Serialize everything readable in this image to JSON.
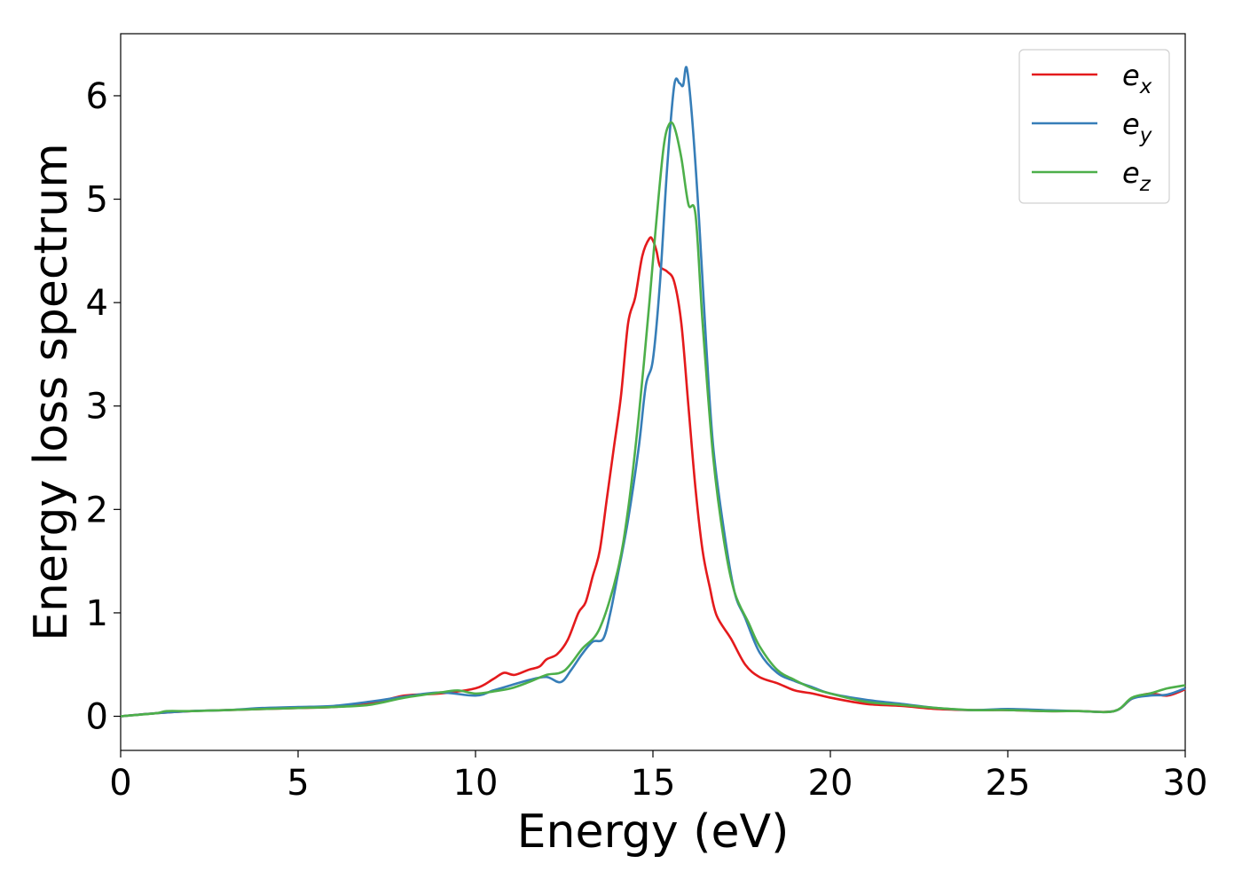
{
  "chart_data": {
    "type": "line",
    "title": "",
    "xlabel": "Energy (eV)",
    "ylabel": "Energy loss spectrum",
    "xlim": [
      0,
      30
    ],
    "ylim": [
      -0.33,
      6.6
    ],
    "xticks": [
      0,
      5,
      10,
      15,
      20,
      25,
      30
    ],
    "yticks": [
      0,
      1,
      2,
      3,
      4,
      5,
      6
    ],
    "grid": false,
    "legend_position": "top-right",
    "series": [
      {
        "name": "e_x",
        "label_base": "e",
        "label_sub": "x",
        "color": "#e41a1c",
        "x": [
          0,
          1,
          2,
          3,
          4,
          5,
          6,
          7,
          8,
          9,
          10,
          10.5,
          10.8,
          11.1,
          11.5,
          11.8,
          12.0,
          12.3,
          12.6,
          12.9,
          13.1,
          13.3,
          13.5,
          13.7,
          13.9,
          14.1,
          14.3,
          14.5,
          14.7,
          14.9,
          15.0,
          15.1,
          15.2,
          15.4,
          15.6,
          15.8,
          16.0,
          16.2,
          16.4,
          16.6,
          16.8,
          17.2,
          17.6,
          18.0,
          18.5,
          19.0,
          19.5,
          20.0,
          21.0,
          22.0,
          23.0,
          24.0,
          25.0,
          26.0,
          27.0,
          28.0,
          28.5,
          29.0,
          29.5,
          30.0
        ],
        "y": [
          0,
          0.03,
          0.05,
          0.06,
          0.07,
          0.08,
          0.09,
          0.12,
          0.2,
          0.22,
          0.27,
          0.36,
          0.42,
          0.4,
          0.45,
          0.48,
          0.55,
          0.6,
          0.74,
          1.0,
          1.1,
          1.35,
          1.6,
          2.1,
          2.6,
          3.1,
          3.8,
          4.05,
          4.45,
          4.62,
          4.6,
          4.5,
          4.35,
          4.3,
          4.2,
          3.8,
          3.0,
          2.2,
          1.6,
          1.25,
          0.97,
          0.75,
          0.5,
          0.38,
          0.32,
          0.25,
          0.22,
          0.18,
          0.12,
          0.1,
          0.07,
          0.06,
          0.06,
          0.05,
          0.05,
          0.05,
          0.17,
          0.22,
          0.2,
          0.26
        ]
      },
      {
        "name": "e_y",
        "label_base": "e",
        "label_sub": "y",
        "color": "#377eb8",
        "x": [
          0,
          1,
          2,
          3,
          4,
          5,
          6,
          7,
          8,
          9,
          10,
          10.5,
          11,
          11.5,
          12.0,
          12.4,
          12.7,
          13.0,
          13.3,
          13.6,
          13.8,
          14.0,
          14.3,
          14.6,
          14.8,
          15.0,
          15.2,
          15.4,
          15.6,
          15.75,
          15.85,
          15.95,
          16.1,
          16.3,
          16.5,
          16.7,
          17.0,
          17.3,
          17.6,
          18.0,
          18.5,
          19.0,
          19.5,
          20.0,
          21.0,
          22.0,
          23.0,
          24.0,
          25.0,
          26.0,
          27.0,
          28.0,
          28.5,
          29.0,
          29.5,
          30.0
        ],
        "y": [
          0,
          0.03,
          0.05,
          0.06,
          0.08,
          0.09,
          0.1,
          0.14,
          0.19,
          0.23,
          0.2,
          0.25,
          0.3,
          0.35,
          0.38,
          0.33,
          0.45,
          0.6,
          0.72,
          0.75,
          1.0,
          1.35,
          1.9,
          2.6,
          3.2,
          3.45,
          4.2,
          5.3,
          6.1,
          6.12,
          6.1,
          6.27,
          5.8,
          4.8,
          3.6,
          2.6,
          1.8,
          1.2,
          0.95,
          0.62,
          0.42,
          0.34,
          0.28,
          0.22,
          0.16,
          0.12,
          0.08,
          0.06,
          0.07,
          0.06,
          0.05,
          0.05,
          0.17,
          0.2,
          0.21,
          0.27
        ]
      },
      {
        "name": "e_z",
        "label_base": "e",
        "label_sub": "z",
        "color": "#4daf4a",
        "x": [
          0,
          1,
          1.3,
          2,
          3,
          4,
          5,
          6,
          7,
          8,
          9,
          9.5,
          10,
          10.5,
          11,
          11.5,
          12.0,
          12.5,
          13.0,
          13.5,
          14.0,
          14.3,
          14.6,
          14.9,
          15.1,
          15.3,
          15.45,
          15.6,
          15.8,
          16.0,
          16.2,
          16.4,
          16.7,
          17.0,
          17.3,
          17.7,
          18.0,
          18.5,
          19.0,
          19.5,
          20.0,
          21.0,
          22.0,
          23.0,
          24.0,
          25.0,
          26.0,
          27.0,
          28.0,
          28.5,
          29.0,
          29.5,
          30.0
        ],
        "y": [
          0,
          0.03,
          0.05,
          0.05,
          0.06,
          0.07,
          0.08,
          0.09,
          0.11,
          0.18,
          0.23,
          0.25,
          0.22,
          0.24,
          0.27,
          0.33,
          0.4,
          0.44,
          0.65,
          0.85,
          1.4,
          2.0,
          2.9,
          4.0,
          4.8,
          5.5,
          5.72,
          5.7,
          5.4,
          4.95,
          4.85,
          3.8,
          2.5,
          1.7,
          1.2,
          0.9,
          0.68,
          0.45,
          0.35,
          0.27,
          0.22,
          0.14,
          0.11,
          0.08,
          0.06,
          0.06,
          0.05,
          0.05,
          0.05,
          0.18,
          0.22,
          0.27,
          0.3
        ]
      }
    ]
  }
}
